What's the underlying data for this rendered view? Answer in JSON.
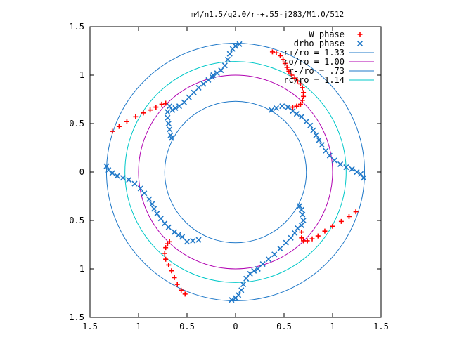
{
  "chart_data": {
    "type": "scatter",
    "title": "m4/n1.5/q2.0/r-+.55-j283/M1.0/512",
    "xlabel": "",
    "ylabel": "",
    "xlim": [
      -1.5,
      1.5
    ],
    "ylim": [
      -1.5,
      1.5
    ],
    "grid": false,
    "legend_position": "top-right",
    "x_ticks": [
      "1.5",
      "1",
      "0.5",
      "0",
      "0.5",
      "1",
      "1.5"
    ],
    "y_ticks": [
      "1.5",
      "1",
      "0.5",
      "0",
      "0.5",
      "1",
      "1.5"
    ],
    "circles": [
      {
        "label": "r+/ro = 1.33",
        "radius": 1.33,
        "color": "#1f78c8"
      },
      {
        "label": "ro/ro = 1.00",
        "radius": 1.0,
        "color": "#b000b0"
      },
      {
        "label": "r-/ro = .73",
        "radius": 0.73,
        "color": "#1f78c8"
      },
      {
        "label": "rc/ro = 1.14",
        "radius": 1.14,
        "color": "#00c8c8"
      }
    ],
    "series": [
      {
        "name": "W phase",
        "marker": "+",
        "color": "#ff0000",
        "points": [
          [
            0.38,
            1.24
          ],
          [
            0.42,
            1.23
          ],
          [
            0.46,
            1.2
          ],
          [
            0.49,
            1.16
          ],
          [
            0.51,
            1.12
          ],
          [
            0.53,
            1.08
          ],
          [
            0.55,
            1.04
          ],
          [
            0.58,
            1.0
          ],
          [
            0.61,
            0.97
          ],
          [
            0.64,
            0.94
          ],
          [
            0.67,
            0.91
          ],
          [
            0.69,
            0.87
          ],
          [
            0.7,
            0.82
          ],
          [
            0.7,
            0.78
          ],
          [
            0.69,
            0.74
          ],
          [
            0.67,
            0.7
          ],
          [
            0.63,
            0.68
          ],
          [
            0.59,
            0.67
          ],
          [
            -1.27,
            0.42
          ],
          [
            -1.2,
            0.47
          ],
          [
            -1.12,
            0.52
          ],
          [
            -1.03,
            0.57
          ],
          [
            -0.95,
            0.61
          ],
          [
            -0.88,
            0.64
          ],
          [
            -0.82,
            0.67
          ],
          [
            -0.76,
            0.7
          ],
          [
            -0.72,
            0.71
          ],
          [
            -0.52,
            -1.26
          ],
          [
            -0.56,
            -1.22
          ],
          [
            -0.6,
            -1.16
          ],
          [
            -0.63,
            -1.09
          ],
          [
            -0.66,
            -1.02
          ],
          [
            -0.69,
            -0.96
          ],
          [
            -0.72,
            -0.9
          ],
          [
            -0.73,
            -0.84
          ],
          [
            -0.72,
            -0.78
          ],
          [
            -0.7,
            -0.74
          ],
          [
            -0.68,
            -0.72
          ],
          [
            1.24,
            -0.41
          ],
          [
            1.17,
            -0.46
          ],
          [
            1.09,
            -0.51
          ],
          [
            1.0,
            -0.56
          ],
          [
            0.92,
            -0.61
          ],
          [
            0.85,
            -0.66
          ],
          [
            0.79,
            -0.69
          ],
          [
            0.74,
            -0.71
          ],
          [
            0.7,
            -0.71
          ],
          [
            0.68,
            -0.68
          ],
          [
            0.68,
            -0.62
          ]
        ]
      },
      {
        "name": "drho phase",
        "marker": "x",
        "color": "#1f78c8",
        "points": [
          [
            0.04,
            1.32
          ],
          [
            0.0,
            1.3
          ],
          [
            -0.03,
            1.27
          ],
          [
            -0.06,
            1.22
          ],
          [
            -0.08,
            1.16
          ],
          [
            -0.11,
            1.1
          ],
          [
            -0.15,
            1.05
          ],
          [
            -0.19,
            1.02
          ],
          [
            -0.23,
            1.0
          ],
          [
            -0.24,
            0.98
          ],
          [
            -0.28,
            0.95
          ],
          [
            -0.33,
            0.91
          ],
          [
            -0.38,
            0.87
          ],
          [
            -0.43,
            0.82
          ],
          [
            -0.48,
            0.77
          ],
          [
            -0.53,
            0.72
          ],
          [
            -0.58,
            0.68
          ],
          [
            -0.62,
            0.66
          ],
          [
            -0.65,
            0.64
          ],
          [
            -0.68,
            0.68
          ],
          [
            -0.7,
            0.62
          ],
          [
            -0.7,
            0.56
          ],
          [
            -0.69,
            0.5
          ],
          [
            -0.68,
            0.44
          ],
          [
            -0.67,
            0.38
          ],
          [
            -0.66,
            0.35
          ],
          [
            -1.33,
            0.06
          ],
          [
            -1.31,
            0.02
          ],
          [
            -1.27,
            -0.01
          ],
          [
            -1.22,
            -0.04
          ],
          [
            -1.16,
            -0.06
          ],
          [
            -1.1,
            -0.08
          ],
          [
            -1.04,
            -0.12
          ],
          [
            -0.98,
            -0.17
          ],
          [
            -0.94,
            -0.22
          ],
          [
            -0.89,
            -0.28
          ],
          [
            -0.86,
            -0.33
          ],
          [
            -0.84,
            -0.38
          ],
          [
            -0.81,
            -0.43
          ],
          [
            -0.77,
            -0.48
          ],
          [
            -0.73,
            -0.53
          ],
          [
            -0.69,
            -0.57
          ],
          [
            -0.63,
            -0.62
          ],
          [
            -0.59,
            -0.65
          ],
          [
            -0.55,
            -0.67
          ],
          [
            -0.5,
            -0.72
          ],
          [
            -0.44,
            -0.71
          ],
          [
            -0.38,
            -0.7
          ],
          [
            -0.04,
            -1.32
          ],
          [
            0.0,
            -1.3
          ],
          [
            0.03,
            -1.27
          ],
          [
            0.06,
            -1.22
          ],
          [
            0.08,
            -1.16
          ],
          [
            0.11,
            -1.1
          ],
          [
            0.15,
            -1.05
          ],
          [
            0.19,
            -1.02
          ],
          [
            0.23,
            -1.0
          ],
          [
            0.28,
            -0.95
          ],
          [
            0.34,
            -0.9
          ],
          [
            0.4,
            -0.85
          ],
          [
            0.46,
            -0.79
          ],
          [
            0.52,
            -0.73
          ],
          [
            0.57,
            -0.68
          ],
          [
            0.61,
            -0.63
          ],
          [
            0.64,
            -0.58
          ],
          [
            0.68,
            -0.55
          ],
          [
            0.7,
            -0.5
          ],
          [
            0.69,
            -0.44
          ],
          [
            0.68,
            -0.39
          ],
          [
            0.66,
            -0.35
          ],
          [
            1.32,
            -0.06
          ],
          [
            1.29,
            -0.02
          ],
          [
            1.25,
            0.0
          ],
          [
            1.2,
            0.03
          ],
          [
            1.14,
            0.05
          ],
          [
            1.08,
            0.08
          ],
          [
            1.02,
            0.12
          ],
          [
            0.97,
            0.17
          ],
          [
            0.93,
            0.22
          ],
          [
            0.89,
            0.28
          ],
          [
            0.86,
            0.33
          ],
          [
            0.83,
            0.38
          ],
          [
            0.8,
            0.43
          ],
          [
            0.77,
            0.48
          ],
          [
            0.73,
            0.52
          ],
          [
            0.68,
            0.57
          ],
          [
            0.63,
            0.6
          ],
          [
            0.59,
            0.63
          ],
          [
            0.54,
            0.67
          ],
          [
            0.48,
            0.68
          ],
          [
            0.42,
            0.66
          ],
          [
            0.37,
            0.64
          ]
        ]
      }
    ]
  }
}
